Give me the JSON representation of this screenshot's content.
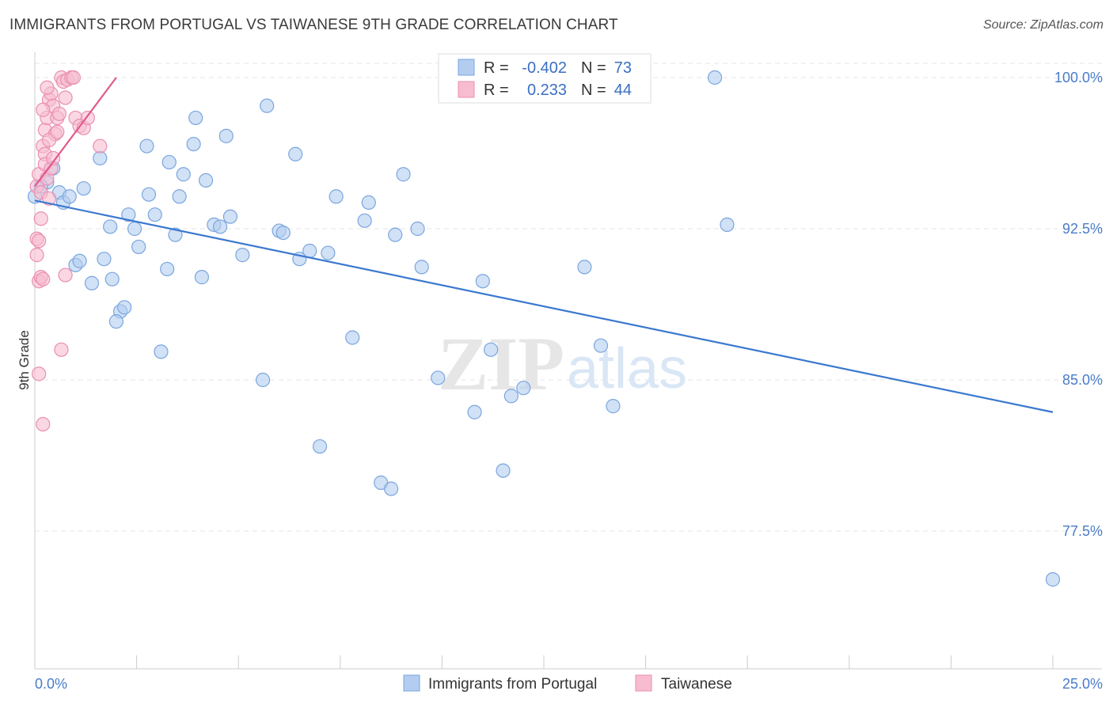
{
  "header": {
    "title": "IMMIGRANTS FROM PORTUGAL VS TAIWANESE 9TH GRADE CORRELATION CHART",
    "source": "Source: ZipAtlas.com"
  },
  "watermark": {
    "zip": "ZIP",
    "atlas": "atlas"
  },
  "colors": {
    "blue_fill": "#b3cdf0",
    "blue_stroke": "#7aa6de",
    "blue_line": "#3a78cf",
    "pink_fill": "#f7bcd0",
    "pink_stroke": "#ea8fb0",
    "pink_line": "#e0588c",
    "grid": "#e6e6e6",
    "axis_text": "#4a7cc9"
  },
  "legend": {
    "r_label": "R =",
    "n_label": "N =",
    "rows": [
      {
        "series": "Immigrants from Portugal",
        "r": "-0.402",
        "n": "73"
      },
      {
        "series": "Taiwanese",
        "r": "0.233",
        "n": "44"
      }
    ]
  },
  "chart_data": {
    "type": "scatter",
    "title": "IMMIGRANTS FROM PORTUGAL VS TAIWANESE 9TH GRADE CORRELATION CHART",
    "xlabel": "",
    "ylabel": "9th Grade",
    "xlim": [
      0,
      25
    ],
    "ylim": [
      69.5,
      100.8
    ],
    "x_tick_labels": [
      "0.0%",
      "25.0%"
    ],
    "y_ticks": [
      77.5,
      85.0,
      92.5,
      100.0
    ],
    "y_tick_labels": [
      "77.5%",
      "85.0%",
      "92.5%",
      "100.0%"
    ],
    "grid": true,
    "legend_position": "bottom",
    "series": [
      {
        "name": "Immigrants from Portugal",
        "r": -0.402,
        "n": 73,
        "trend": {
          "x": [
            0.0,
            25.0
          ],
          "y": [
            93.9,
            83.4
          ]
        },
        "points": [
          [
            0.0,
            94.1
          ],
          [
            0.3,
            94.8
          ],
          [
            0.45,
            95.5
          ],
          [
            0.6,
            94.3
          ],
          [
            0.7,
            93.8
          ],
          [
            0.85,
            94.1
          ],
          [
            1.0,
            90.7
          ],
          [
            1.1,
            90.9
          ],
          [
            1.2,
            94.5
          ],
          [
            1.4,
            89.8
          ],
          [
            1.6,
            96.0
          ],
          [
            1.7,
            91.0
          ],
          [
            1.85,
            92.6
          ],
          [
            1.9,
            90.0
          ],
          [
            2.1,
            88.4
          ],
          [
            2.2,
            88.6
          ],
          [
            2.3,
            93.2
          ],
          [
            2.45,
            92.5
          ],
          [
            2.55,
            91.6
          ],
          [
            2.75,
            96.6
          ],
          [
            2.8,
            94.2
          ],
          [
            2.95,
            93.2
          ],
          [
            3.1,
            86.4
          ],
          [
            3.25,
            90.5
          ],
          [
            3.3,
            95.8
          ],
          [
            3.45,
            92.2
          ],
          [
            3.55,
            94.1
          ],
          [
            3.65,
            95.2
          ],
          [
            3.9,
            96.7
          ],
          [
            3.95,
            98.0
          ],
          [
            4.1,
            90.1
          ],
          [
            4.2,
            94.9
          ],
          [
            4.4,
            92.7
          ],
          [
            4.55,
            92.6
          ],
          [
            4.7,
            97.1
          ],
          [
            4.8,
            93.1
          ],
          [
            5.1,
            91.2
          ],
          [
            5.6,
            85.0
          ],
          [
            5.7,
            98.6
          ],
          [
            6.0,
            92.4
          ],
          [
            6.1,
            92.3
          ],
          [
            6.4,
            96.2
          ],
          [
            6.5,
            91.0
          ],
          [
            6.75,
            91.4
          ],
          [
            7.0,
            81.7
          ],
          [
            7.2,
            91.3
          ],
          [
            7.4,
            94.1
          ],
          [
            7.8,
            87.1
          ],
          [
            8.1,
            92.9
          ],
          [
            8.2,
            93.8
          ],
          [
            8.5,
            79.9
          ],
          [
            8.75,
            79.6
          ],
          [
            8.85,
            92.2
          ],
          [
            9.05,
            95.2
          ],
          [
            9.4,
            92.5
          ],
          [
            9.5,
            90.6
          ],
          [
            9.9,
            85.1
          ],
          [
            10.8,
            83.4
          ],
          [
            11.0,
            89.9
          ],
          [
            11.2,
            86.5
          ],
          [
            11.3,
            100.0
          ],
          [
            11.5,
            80.5
          ],
          [
            11.7,
            84.2
          ],
          [
            12.0,
            84.6
          ],
          [
            13.5,
            90.6
          ],
          [
            13.9,
            86.7
          ],
          [
            14.2,
            83.7
          ],
          [
            14.6,
            100.0
          ],
          [
            16.7,
            100.0
          ],
          [
            17.0,
            92.7
          ],
          [
            25.0,
            75.1
          ],
          [
            0.15,
            94.6
          ],
          [
            2.0,
            87.9
          ]
        ]
      },
      {
        "name": "Taiwanese",
        "r": 0.233,
        "n": 44,
        "trend": {
          "x": [
            0.0,
            2.0
          ],
          "y": [
            94.6,
            100.0
          ]
        },
        "points": [
          [
            0.05,
            94.6
          ],
          [
            0.1,
            95.2
          ],
          [
            0.15,
            94.3
          ],
          [
            0.2,
            96.6
          ],
          [
            0.25,
            96.2
          ],
          [
            0.05,
            92.0
          ],
          [
            0.1,
            91.9
          ],
          [
            0.05,
            91.2
          ],
          [
            0.1,
            89.9
          ],
          [
            0.15,
            90.1
          ],
          [
            0.2,
            90.0
          ],
          [
            0.1,
            85.3
          ],
          [
            0.2,
            82.8
          ],
          [
            0.25,
            97.4
          ],
          [
            0.3,
            98.0
          ],
          [
            0.35,
            98.9
          ],
          [
            0.4,
            99.2
          ],
          [
            0.45,
            98.6
          ],
          [
            0.5,
            97.2
          ],
          [
            0.25,
            95.7
          ],
          [
            0.3,
            95.0
          ],
          [
            0.35,
            96.9
          ],
          [
            0.4,
            95.5
          ],
          [
            0.45,
            96.0
          ],
          [
            0.55,
            98.0
          ],
          [
            0.6,
            98.2
          ],
          [
            0.65,
            100.0
          ],
          [
            0.7,
            99.8
          ],
          [
            0.75,
            99.0
          ],
          [
            0.8,
            99.9
          ],
          [
            0.9,
            100.0
          ],
          [
            0.95,
            100.0
          ],
          [
            1.0,
            98.0
          ],
          [
            1.1,
            97.6
          ],
          [
            1.2,
            97.5
          ],
          [
            1.3,
            98.0
          ],
          [
            1.6,
            96.6
          ],
          [
            0.65,
            86.5
          ],
          [
            0.75,
            90.2
          ],
          [
            0.2,
            98.4
          ],
          [
            0.3,
            99.5
          ],
          [
            0.55,
            97.3
          ],
          [
            0.15,
            93.0
          ],
          [
            0.35,
            94.0
          ]
        ]
      }
    ]
  },
  "bottom_legend": [
    {
      "label": "Immigrants from Portugal",
      "swatch": "blue"
    },
    {
      "label": "Taiwanese",
      "swatch": "pink"
    }
  ]
}
